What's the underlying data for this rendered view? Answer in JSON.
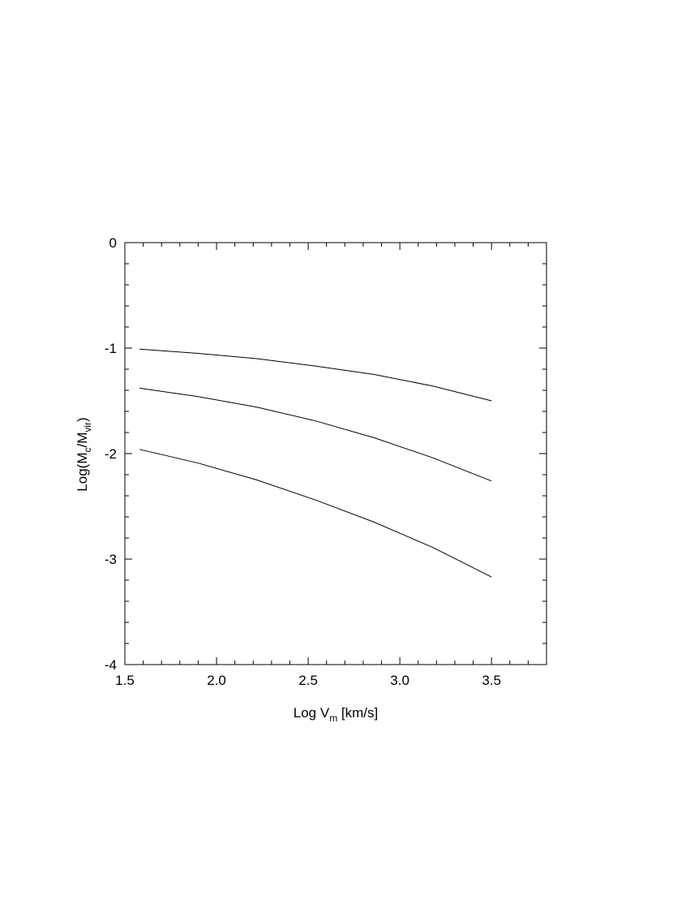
{
  "chart_data": {
    "type": "line",
    "title": "",
    "xlabel": {
      "main": "Log V",
      "sub": "m",
      "suffix": " [km/s]"
    },
    "ylabel": {
      "pre": "Log(M",
      "sub1": "c",
      "mid": "/M",
      "sub2": "vir",
      "post": ")"
    },
    "xlim": [
      1.5,
      3.8
    ],
    "ylim": [
      -4,
      0
    ],
    "x_major_ticks": [
      1.5,
      2.0,
      2.5,
      3.0,
      3.5
    ],
    "x_tick_labels": [
      "1.5",
      "2.0",
      "2.5",
      "3.0",
      "3.5"
    ],
    "x_minor_step": 0.1,
    "y_major_ticks": [
      -4,
      -3,
      -2,
      -1,
      0
    ],
    "y_tick_labels": [
      "-4",
      "-3",
      "-2",
      "-1",
      "0"
    ],
    "y_minor_step": 0.2,
    "grid": false,
    "legend": "none",
    "series": [
      {
        "x": [
          1.58,
          1.9,
          2.22,
          2.54,
          2.86,
          3.18,
          3.5
        ],
        "y": [
          -1.01,
          -1.05,
          -1.1,
          -1.17,
          -1.25,
          -1.36,
          -1.5
        ]
      },
      {
        "x": [
          1.58,
          1.9,
          2.22,
          2.54,
          2.86,
          3.18,
          3.5
        ],
        "y": [
          -1.38,
          -1.46,
          -1.56,
          -1.69,
          -1.85,
          -2.04,
          -2.26
        ]
      },
      {
        "x": [
          1.58,
          1.9,
          2.22,
          2.54,
          2.86,
          3.18,
          3.5
        ],
        "y": [
          -1.96,
          -2.09,
          -2.25,
          -2.44,
          -2.65,
          -2.89,
          -3.17
        ]
      }
    ],
    "line_color": "#000000"
  }
}
